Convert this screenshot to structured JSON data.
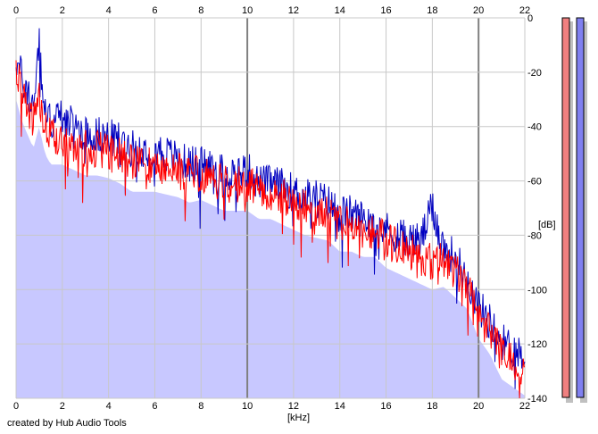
{
  "footer": "created by Hub Audio Tools",
  "chart_data": {
    "type": "area",
    "title": "",
    "xlabel": "[kHz]",
    "ylabel": "[dB]",
    "xlim": [
      0,
      22
    ],
    "ylim": [
      -140,
      0
    ],
    "x_ticks": [
      "0",
      "2",
      "4",
      "6",
      "8",
      "10",
      "12",
      "14",
      "16",
      "18",
      "20",
      "22"
    ],
    "y_ticks": [
      "0",
      "-20",
      "-40",
      "-60",
      "-80",
      "-100",
      "-120",
      "-140"
    ],
    "grid": true,
    "legend": "none",
    "colors": {
      "fill": "#c8c8ff",
      "series_red": "#ff0000",
      "series_blue": "#0000c0",
      "grid_minor": "#c8c8c8",
      "grid_major": "#808080",
      "meter_left": "#f08080",
      "meter_right": "#8080f0"
    },
    "series": [
      {
        "color": "#ff0000",
        "x": [
          0,
          0.25,
          0.5,
          0.75,
          1,
          1.25,
          1.5,
          2,
          2.5,
          3,
          3.5,
          4,
          4.5,
          5,
          5.5,
          6,
          6.5,
          7,
          7.5,
          8,
          8.5,
          9,
          9.5,
          10,
          10.5,
          11,
          11.5,
          12,
          12.5,
          13,
          13.5,
          14,
          14.5,
          15,
          15.5,
          16,
          16.5,
          17,
          17.5,
          18,
          18.5,
          19,
          19.5,
          20,
          20.5,
          21,
          21.5,
          22
        ],
        "values": [
          -20,
          -28,
          -33,
          -38,
          -30,
          -40,
          -44,
          -44,
          -46,
          -48,
          -48,
          -49,
          -51,
          -54,
          -54,
          -54,
          -55,
          -56,
          -58,
          -57,
          -59,
          -61,
          -61,
          -61,
          -64,
          -64,
          -66,
          -68,
          -70,
          -71,
          -72,
          -76,
          -76,
          -78,
          -78,
          -82,
          -84,
          -86,
          -88,
          -90,
          -89,
          -93,
          -97,
          -108,
          -114,
          -123,
          -126,
          -129
        ]
      },
      {
        "color": "#0000c0",
        "x": [
          0,
          0.25,
          0.5,
          0.75,
          1,
          1.25,
          1.5,
          2,
          2.5,
          3,
          3.5,
          4,
          4.5,
          5,
          5.5,
          6,
          6.5,
          7,
          7.5,
          8,
          8.5,
          9,
          9.5,
          10,
          10.5,
          11,
          11.5,
          12,
          12.5,
          13,
          13.5,
          14,
          14.5,
          15,
          15.5,
          16,
          16.5,
          17,
          17.5,
          18,
          18.5,
          19,
          19.5,
          20,
          20.5,
          21,
          21.5,
          22
        ],
        "values": [
          -15,
          -22,
          -28,
          -32,
          -10,
          -36,
          -38,
          -36,
          -40,
          -42,
          -43,
          -44,
          -45,
          -48,
          -48,
          -48,
          -50,
          -52,
          -54,
          -53,
          -55,
          -57,
          -57,
          -56,
          -61,
          -61,
          -62,
          -64,
          -66,
          -66,
          -68,
          -72,
          -72,
          -74,
          -74,
          -78,
          -80,
          -82,
          -82,
          -70,
          -85,
          -88,
          -96,
          -106,
          -112,
          -119,
          -122,
          -124
        ]
      }
    ]
  }
}
